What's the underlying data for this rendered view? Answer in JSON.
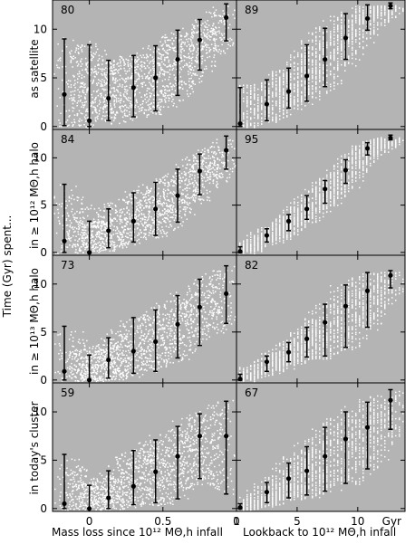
{
  "figure": {
    "y_super_label": "Time (Gyr) spent...",
    "row_labels": [
      "as satellite",
      "in ≥ 10¹² MΘ,h halo",
      "in ≥ 10¹³ MΘ,h halo",
      "in today's cluster"
    ],
    "left_xlabel": "Mass loss since 10¹² MΘ,h infall",
    "right_xlabel": "Lookback to 10¹² MΘ,h infall",
    "right_unit": "Gyr",
    "colors": {
      "panel_bg": "#b4b4b4",
      "scatter": "#ffffff",
      "points": "#000000"
    }
  },
  "chart_data": [
    {
      "type": "scatter",
      "row": 0,
      "col": "left",
      "label": "80",
      "xlim": [
        -0.25,
        1.0
      ],
      "ylim": [
        -0.3,
        13.0
      ],
      "xticks": [
        "0",
        "0.5",
        "1"
      ],
      "yticks": [
        "0",
        "5",
        "10"
      ],
      "x": [
        -0.17,
        0.0,
        0.13,
        0.3,
        0.45,
        0.6,
        0.75,
        0.93
      ],
      "y": [
        3.3,
        0.6,
        2.9,
        4.0,
        5.0,
        6.9,
        8.9,
        11.2
      ],
      "y_low": [
        0.1,
        0.0,
        0.6,
        1.0,
        1.6,
        3.2,
        5.8,
        8.8
      ],
      "y_high": [
        9.0,
        8.4,
        6.8,
        7.3,
        8.3,
        9.9,
        11.0,
        12.6
      ]
    },
    {
      "type": "scatter",
      "row": 0,
      "col": "right",
      "label": "89",
      "xlim": [
        0.0,
        13.9
      ],
      "ylim": [
        -0.3,
        13.0
      ],
      "xticks": [
        "0",
        "5",
        "10"
      ],
      "yticks": [
        "0",
        "5",
        "10"
      ],
      "x": [
        0.3,
        2.5,
        4.3,
        5.8,
        7.3,
        9.0,
        10.8,
        12.7
      ],
      "y": [
        0.3,
        2.3,
        3.6,
        5.2,
        6.9,
        9.1,
        11.1,
        12.4
      ],
      "y_low": [
        0.0,
        0.6,
        1.9,
        2.6,
        4.1,
        6.9,
        9.9,
        12.1
      ],
      "y_high": [
        4.0,
        4.8,
        6.0,
        8.4,
        10.1,
        11.6,
        12.5,
        12.7
      ]
    },
    {
      "type": "scatter",
      "row": 1,
      "col": "left",
      "label": "84",
      "xlim": [
        -0.25,
        1.0
      ],
      "ylim": [
        -0.3,
        13.0
      ],
      "xticks": [
        "0",
        "0.5",
        "1"
      ],
      "yticks": [
        "0",
        "5",
        "10"
      ],
      "x": [
        -0.17,
        0.0,
        0.13,
        0.3,
        0.45,
        0.6,
        0.75,
        0.93
      ],
      "y": [
        1.2,
        0.0,
        2.3,
        3.3,
        4.6,
        6.0,
        8.6,
        10.8
      ],
      "y_low": [
        0.0,
        0.0,
        0.5,
        1.1,
        1.8,
        3.2,
        6.1,
        8.8
      ],
      "y_high": [
        7.2,
        3.3,
        4.6,
        6.3,
        7.4,
        8.8,
        10.4,
        12.3
      ]
    },
    {
      "type": "scatter",
      "row": 1,
      "col": "right",
      "label": "95",
      "xlim": [
        0.0,
        13.9
      ],
      "ylim": [
        -0.3,
        13.0
      ],
      "xticks": [
        "0",
        "5",
        "10"
      ],
      "yticks": [
        "0",
        "5",
        "10"
      ],
      "x": [
        0.3,
        2.5,
        4.3,
        5.8,
        7.3,
        9.0,
        10.8,
        12.7
      ],
      "y": [
        0.1,
        1.8,
        3.3,
        4.6,
        6.7,
        8.7,
        11.0,
        12.1
      ],
      "y_low": [
        0.0,
        1.1,
        2.3,
        3.5,
        5.2,
        7.3,
        10.3,
        11.9
      ],
      "y_high": [
        0.6,
        2.5,
        4.0,
        6.0,
        7.6,
        9.8,
        11.6,
        12.4
      ]
    },
    {
      "type": "scatter",
      "row": 2,
      "col": "left",
      "label": "73",
      "xlim": [
        -0.25,
        1.0
      ],
      "ylim": [
        -0.3,
        13.0
      ],
      "xticks": [
        "0",
        "0.5",
        "1"
      ],
      "yticks": [
        "0",
        "5",
        "10"
      ],
      "x": [
        -0.17,
        0.0,
        0.13,
        0.3,
        0.45,
        0.6,
        0.75,
        0.93
      ],
      "y": [
        0.9,
        0.0,
        2.1,
        3.0,
        4.0,
        5.8,
        7.6,
        9.0
      ],
      "y_low": [
        0.0,
        0.0,
        0.2,
        0.7,
        0.9,
        2.3,
        3.6,
        5.9
      ],
      "y_high": [
        5.6,
        2.6,
        4.4,
        6.5,
        7.3,
        8.8,
        10.5,
        11.9
      ]
    },
    {
      "type": "scatter",
      "row": 2,
      "col": "right",
      "label": "82",
      "xlim": [
        0.0,
        13.9
      ],
      "ylim": [
        -0.3,
        13.0
      ],
      "xticks": [
        "0",
        "5",
        "10"
      ],
      "yticks": [
        "0",
        "5",
        "10"
      ],
      "x": [
        0.3,
        2.5,
        4.3,
        5.8,
        7.3,
        9.0,
        10.8,
        12.7
      ],
      "y": [
        0.1,
        1.9,
        2.9,
        4.3,
        6.0,
        7.7,
        9.3,
        10.9
      ],
      "y_low": [
        0.0,
        0.9,
        1.9,
        2.4,
        2.5,
        3.4,
        5.5,
        9.6
      ],
      "y_high": [
        0.6,
        2.5,
        3.9,
        5.5,
        7.9,
        9.9,
        11.2,
        11.4
      ]
    },
    {
      "type": "scatter",
      "row": 3,
      "col": "left",
      "label": "59",
      "xlim": [
        -0.25,
        1.0
      ],
      "ylim": [
        -0.3,
        13.0
      ],
      "xticks": [
        "0",
        "0.5",
        "1"
      ],
      "yticks": [
        "0",
        "5",
        "10"
      ],
      "x": [
        -0.17,
        0.0,
        0.13,
        0.3,
        0.45,
        0.6,
        0.75,
        0.93
      ],
      "y": [
        0.5,
        0.0,
        1.1,
        2.3,
        3.8,
        5.4,
        7.5,
        7.5
      ],
      "y_low": [
        0.0,
        0.0,
        0.0,
        0.4,
        0.6,
        1.0,
        3.1,
        1.5
      ],
      "y_high": [
        5.6,
        2.4,
        3.9,
        6.0,
        7.1,
        8.5,
        9.8,
        11.1
      ]
    },
    {
      "type": "scatter",
      "row": 3,
      "col": "right",
      "label": "67",
      "xlim": [
        0.0,
        13.9
      ],
      "ylim": [
        -0.3,
        13.0
      ],
      "xticks": [
        "0",
        "5",
        "10"
      ],
      "yticks": [
        "0",
        "5",
        "10"
      ],
      "x": [
        0.3,
        2.5,
        4.3,
        5.8,
        7.3,
        9.0,
        10.8,
        12.7
      ],
      "y": [
        0.1,
        1.7,
        3.1,
        3.9,
        5.4,
        7.2,
        8.4,
        11.2
      ],
      "y_low": [
        0.0,
        0.6,
        1.1,
        1.4,
        1.8,
        2.6,
        4.1,
        8.2
      ],
      "y_high": [
        0.5,
        2.7,
        4.7,
        6.4,
        8.4,
        10.0,
        11.0,
        12.3
      ]
    }
  ]
}
